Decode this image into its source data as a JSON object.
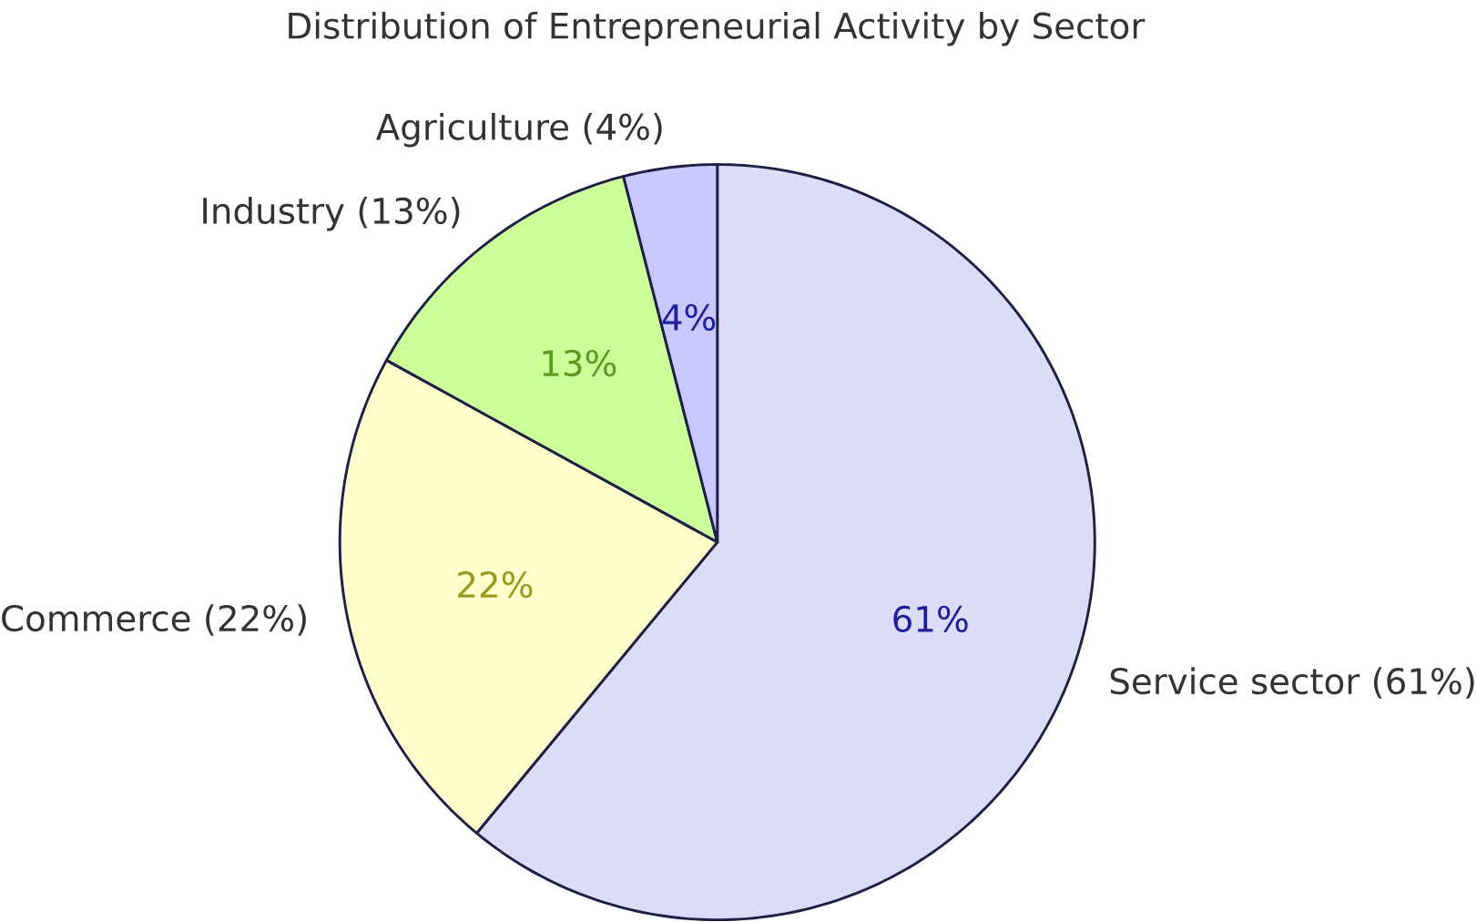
{
  "chart_data": {
    "type": "pie",
    "title": "Distribution of Entrepreneurial Activity by Sector",
    "categories": [
      "Service sector (61%)",
      "Commerce (22%)",
      "Industry (13%)",
      "Agriculture (4%)"
    ],
    "values": [
      61,
      22,
      13,
      4
    ],
    "value_labels": [
      "61%",
      "22%",
      "13%",
      "4%"
    ],
    "colors": [
      "#dcdcf8",
      "#ffffcc",
      "#ccff99",
      "#c8c8ff"
    ]
  }
}
